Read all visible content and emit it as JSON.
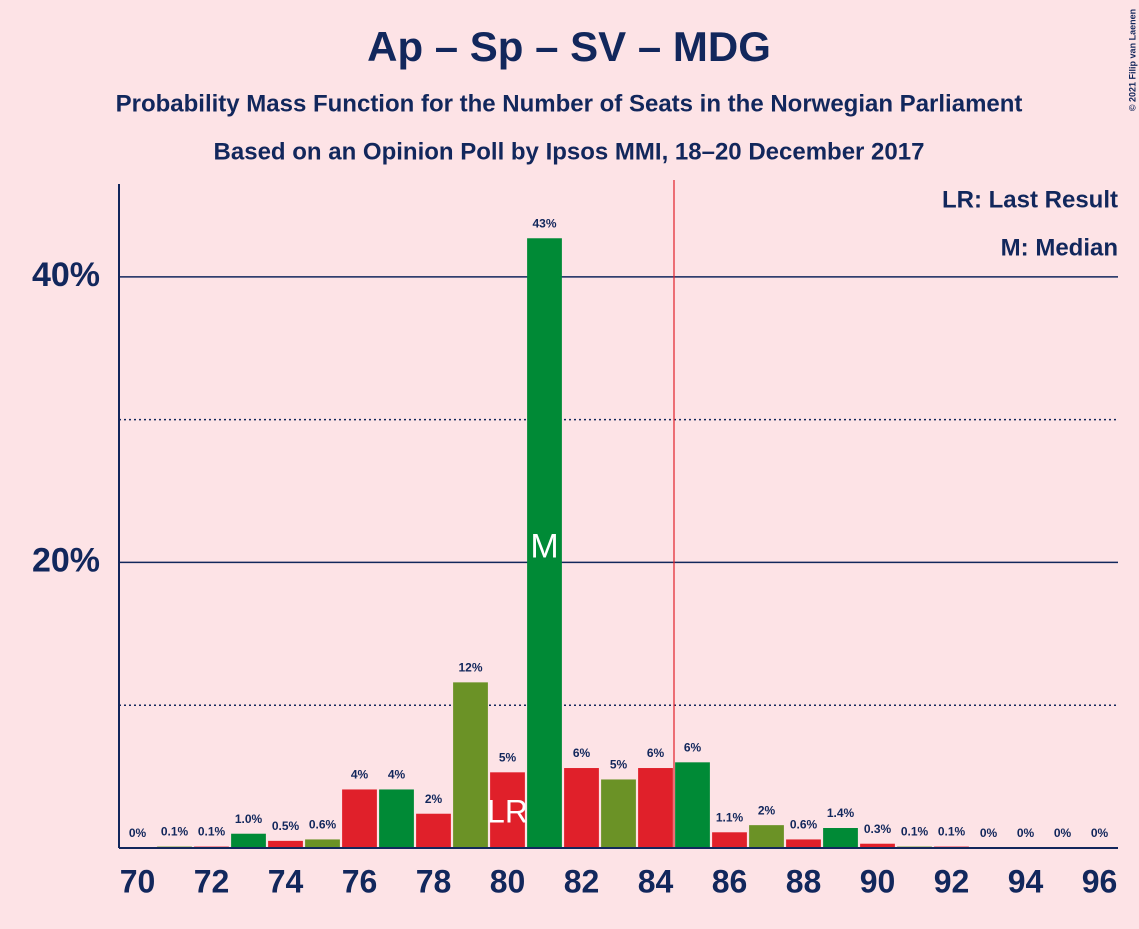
{
  "chart_data": {
    "type": "bar",
    "title": "Ap – Sp – SV – MDG",
    "subtitle": "Probability Mass Function for the Number of Seats in the Norwegian Parliament",
    "subtitle2": "Based on an Opinion Poll by Ipsos MMI, 18–20 December 2017",
    "copyright": "© 2021 Filip van Laenen",
    "legend": [
      "LR: Last Result",
      "M: Median"
    ],
    "lr_label": "LR",
    "median_label": "M",
    "last_result": 80,
    "median": 81,
    "majority_line": 84.5,
    "x": [
      70,
      71,
      72,
      73,
      74,
      75,
      76,
      77,
      78,
      79,
      80,
      81,
      82,
      83,
      84,
      85,
      86,
      87,
      88,
      89,
      90,
      91,
      92,
      93,
      94,
      95,
      96
    ],
    "values": [
      0,
      0.1,
      0.1,
      1.0,
      0.5,
      0.6,
      4.1,
      4.1,
      2.4,
      11.6,
      5.3,
      42.7,
      5.6,
      4.8,
      5.6,
      6.0,
      1.1,
      1.6,
      0.6,
      1.4,
      0.3,
      0.1,
      0.1,
      0,
      0,
      0,
      0
    ],
    "value_labels": [
      "0%",
      "0.1%",
      "0.1%",
      "1.0%",
      "0.5%",
      "0.6%",
      "4%",
      "4%",
      "2%",
      "12%",
      "5%",
      "43%",
      "6%",
      "5%",
      "6%",
      "6%",
      "1.1%",
      "2%",
      "0.6%",
      "1.4%",
      "0.3%",
      "0.1%",
      "0.1%",
      "0%",
      "0%",
      "0%",
      "0%"
    ],
    "colors": [
      "#e0202a",
      "#6b9226",
      "#e0202a",
      "#008a36",
      "#e0202a",
      "#6b9226",
      "#e0202a",
      "#008a36",
      "#e0202a",
      "#6b9226",
      "#e0202a",
      "#008a36",
      "#e0202a",
      "#6b9226",
      "#e0202a",
      "#008a36",
      "#e0202a",
      "#6b9226",
      "#e0202a",
      "#008a36",
      "#e0202a",
      "#6b9226",
      "#e0202a",
      "#008a36",
      "#e0202a",
      "#6b9226",
      "#e0202a"
    ],
    "xlim": [
      69.5,
      96.5
    ],
    "xticks": [
      70,
      72,
      74,
      76,
      78,
      80,
      82,
      84,
      86,
      88,
      90,
      92,
      94,
      96
    ],
    "ylim": [
      0,
      46.5
    ],
    "yticks": [
      {
        "value": 20,
        "label": "20%"
      },
      {
        "value": 40,
        "label": "40%"
      }
    ],
    "yminor": [
      10,
      30
    ],
    "grid": true
  }
}
